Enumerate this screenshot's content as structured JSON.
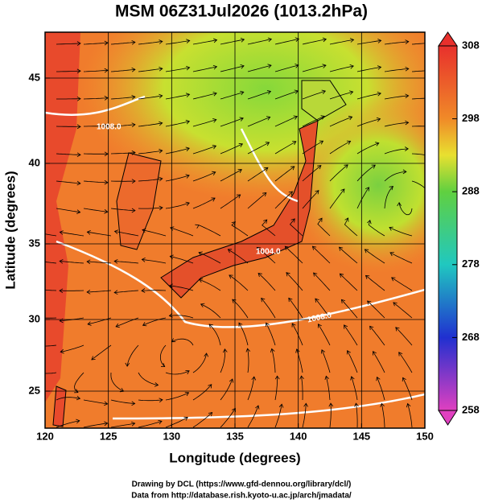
{
  "title": "MSM 06Z31Jul2026 (1013.2hPa)",
  "x_axis": {
    "label": "Longitude (degrees)",
    "ticks": [
      120,
      125,
      130,
      135,
      140,
      145,
      150
    ]
  },
  "y_axis": {
    "label": "Latitude  (degrees)",
    "ticks": [
      45,
      40,
      35,
      30,
      25
    ]
  },
  "colorbar": {
    "ticks": [
      308,
      298,
      288,
      278,
      268,
      258
    ]
  },
  "contour_labels": [
    "1008.0",
    "1004.0",
    "1008.0"
  ],
  "credits": [
    "Drawing by DCL (https://www.gfd-dennou.org/library/dcl/)",
    "Data from http://database.rish.kyoto-u.ac.jp/arch/jmadata/"
  ]
}
